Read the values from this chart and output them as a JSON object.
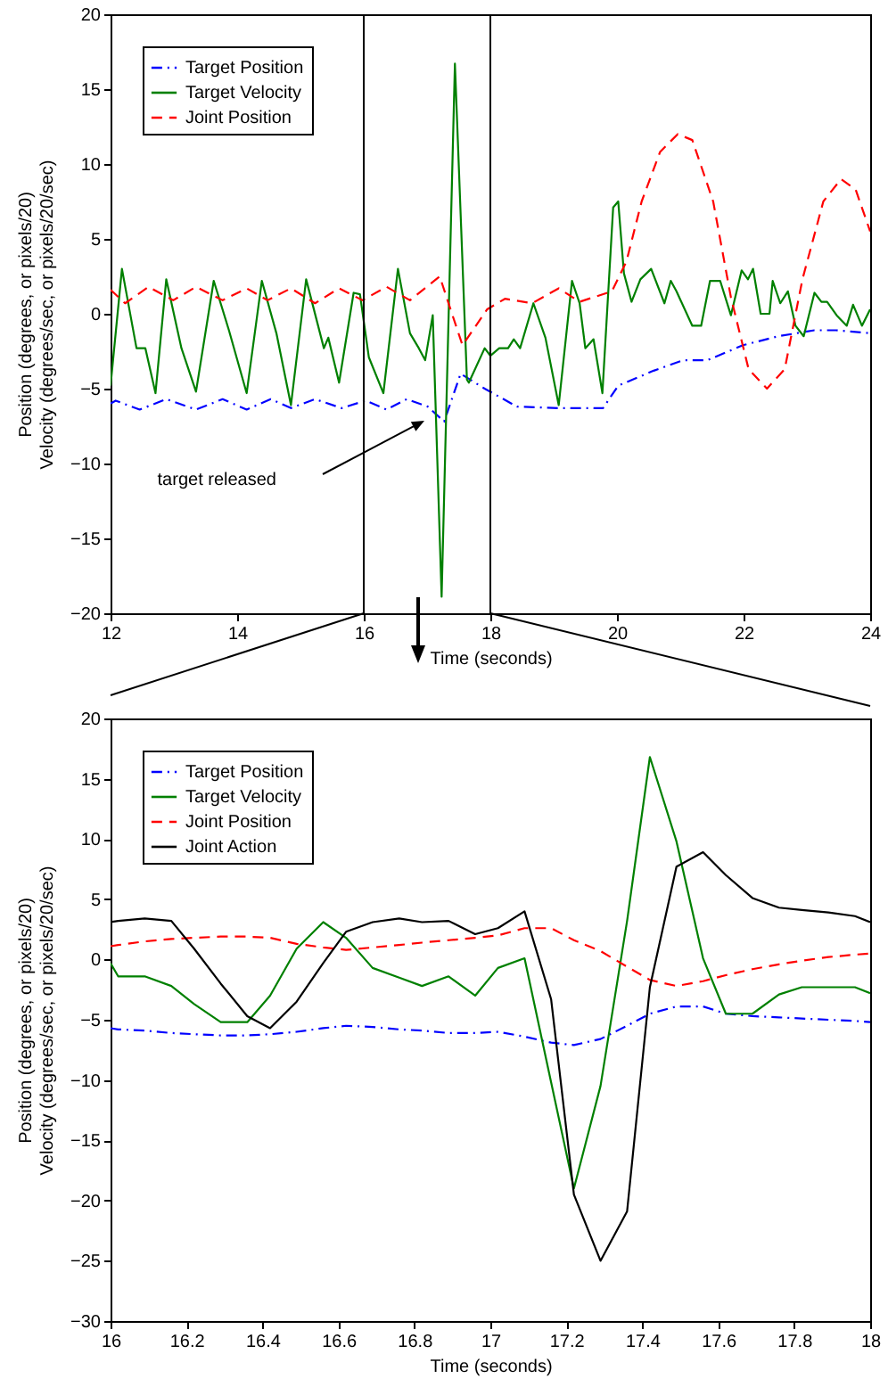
{
  "chart_data": [
    {
      "type": "line",
      "xlabel": "Time (seconds)",
      "ylabel": "Position (degrees, or pixels/20)\nVelocity (degrees/sec, or pixels/20/sec)",
      "xlim": [
        12,
        24
      ],
      "ylim": [
        -20,
        20
      ],
      "xticks": [
        12,
        14,
        16,
        18,
        20,
        22,
        24
      ],
      "yticks": [
        -20,
        -15,
        -10,
        -5,
        0,
        5,
        10,
        15,
        20
      ],
      "grid": false,
      "legend": "top left",
      "marker": "none",
      "ref_lines": [
        {
          "axis": "x",
          "value": 16,
          "color": "#000000"
        },
        {
          "axis": "x",
          "value": 18,
          "color": "#000000"
        }
      ],
      "annotations": [
        "target released"
      ],
      "series": [
        {
          "name": "Target Position",
          "color": "#0000ff",
          "line_style": "dashdot",
          "x": [
            12.0,
            12.08,
            12.46,
            12.88,
            13.35,
            13.77,
            14.15,
            14.53,
            14.85,
            15.23,
            15.65,
            16.03,
            16.36,
            16.68,
            17.01,
            17.27,
            17.53,
            17.91,
            18.42,
            19.08,
            19.78,
            20.02,
            20.58,
            21.05,
            21.43,
            21.99,
            22.55,
            23.12,
            23.46,
            24.0
          ],
          "values": [
            -6.0,
            -5.8,
            -6.4,
            -5.7,
            -6.4,
            -5.7,
            -6.4,
            -5.7,
            -6.3,
            -5.7,
            -6.3,
            -5.8,
            -6.4,
            -5.7,
            -6.2,
            -7.2,
            -4.0,
            -5.0,
            -6.2,
            -6.3,
            -6.3,
            -4.8,
            -3.8,
            -3.1,
            -3.1,
            -2.1,
            -1.5,
            -1.1,
            -1.1,
            -1.3
          ]
        },
        {
          "name": "Target Velocity",
          "color": "#008000",
          "line_style": "solid",
          "x": [
            12.0,
            12.18,
            12.41,
            12.55,
            12.71,
            12.88,
            13.12,
            13.35,
            13.63,
            13.87,
            14.15,
            14.39,
            14.62,
            14.85,
            15.09,
            15.37,
            15.44,
            15.61,
            15.84,
            15.94,
            16.08,
            16.31,
            16.54,
            16.73,
            16.87,
            16.97,
            17.09,
            17.23,
            17.44,
            17.63,
            17.66,
            17.91,
            18.0,
            18.14,
            18.28,
            18.37,
            18.47,
            18.68,
            18.87,
            19.08,
            19.29,
            19.41,
            19.5,
            19.63,
            19.77,
            19.94,
            20.02,
            20.11,
            20.23,
            20.37,
            20.54,
            20.75,
            20.85,
            20.94,
            21.19,
            21.33,
            21.47,
            21.63,
            21.8,
            21.97,
            22.07,
            22.15,
            22.27,
            22.41,
            22.46,
            22.58,
            22.7,
            22.82,
            22.95,
            23.12,
            23.23,
            23.32,
            23.47,
            23.63,
            23.73,
            23.87,
            24.0
          ],
          "values": [
            -4.8,
            3.0,
            -2.3,
            -2.3,
            -5.3,
            2.3,
            -2.3,
            -5.2,
            2.2,
            -1.1,
            -5.3,
            2.2,
            -1.3,
            -6.1,
            2.3,
            -2.3,
            -1.6,
            -4.6,
            1.4,
            1.3,
            -2.9,
            -5.3,
            3.0,
            -1.3,
            -2.3,
            -3.1,
            -0.1,
            -18.9,
            16.7,
            -4.4,
            -4.6,
            -2.3,
            -2.8,
            -2.3,
            -2.3,
            -1.7,
            -2.3,
            0.7,
            -1.6,
            -6.1,
            2.2,
            0.7,
            -2.3,
            -1.7,
            -5.3,
            7.1,
            7.5,
            2.7,
            0.8,
            2.3,
            3.0,
            0.7,
            2.2,
            1.5,
            -0.8,
            -0.8,
            2.2,
            2.2,
            -0.1,
            2.9,
            2.3,
            3.0,
            0.0,
            0.0,
            2.2,
            0.7,
            1.5,
            -0.8,
            -1.5,
            1.4,
            0.8,
            0.8,
            -0.1,
            -0.8,
            0.6,
            -0.8,
            0.3
          ]
        },
        {
          "name": "Joint Position",
          "color": "#ff0000",
          "line_style": "dashed",
          "x": [
            12.0,
            12.23,
            12.6,
            12.99,
            13.35,
            13.77,
            14.15,
            14.48,
            14.85,
            15.23,
            15.61,
            15.98,
            16.36,
            16.73,
            17.2,
            17.37,
            17.56,
            17.95,
            18.23,
            18.66,
            19.08,
            19.41,
            19.92,
            20.15,
            20.39,
            20.68,
            20.96,
            21.19,
            21.52,
            21.8,
            22.08,
            22.37,
            22.65,
            22.93,
            23.26,
            23.54,
            23.77,
            24.0
          ],
          "values": [
            1.6,
            0.7,
            1.8,
            0.9,
            1.8,
            0.9,
            1.7,
            0.9,
            1.7,
            0.7,
            1.7,
            0.9,
            1.8,
            0.9,
            2.5,
            0.3,
            -2.1,
            0.3,
            1.0,
            0.7,
            1.7,
            0.8,
            1.5,
            3.5,
            7.5,
            10.8,
            12.0,
            11.6,
            7.5,
            1.1,
            -3.7,
            -5.0,
            -3.7,
            2.3,
            7.5,
            9.0,
            8.3,
            5.5
          ]
        }
      ]
    },
    {
      "type": "line",
      "xlabel": "Time (seconds)",
      "ylabel": "Position (degrees, or pixels/20)\nVelocity (degrees/sec, or pixels/20/sec)",
      "xlim": [
        16,
        18
      ],
      "ylim": [
        -30,
        20
      ],
      "xticks": [
        16,
        16.2,
        16.4,
        16.6,
        16.8,
        17,
        17.2,
        17.4,
        17.6,
        17.8,
        18
      ],
      "yticks": [
        -30,
        -25,
        -20,
        -15,
        -10,
        -5,
        0,
        5,
        10,
        15,
        20
      ],
      "grid": false,
      "legend": "top left",
      "marker": "none",
      "x": [
        16.0,
        16.02,
        16.09,
        16.16,
        16.22,
        16.29,
        16.36,
        16.42,
        16.49,
        16.56,
        16.62,
        16.69,
        16.76,
        16.82,
        16.89,
        16.96,
        17.02,
        17.09,
        17.16,
        17.22,
        17.29,
        17.36,
        17.42,
        17.49,
        17.56,
        17.62,
        17.69,
        17.76,
        17.82,
        17.89,
        17.96,
        18.0
      ],
      "series": [
        {
          "name": "Target Position",
          "color": "#0000ff",
          "line_style": "dashdot",
          "values": [
            -5.7,
            -5.8,
            -5.9,
            -6.1,
            -6.2,
            -6.3,
            -6.3,
            -6.2,
            -6.0,
            -5.7,
            -5.5,
            -5.6,
            -5.8,
            -5.9,
            -6.1,
            -6.1,
            -6.0,
            -6.4,
            -6.9,
            -7.1,
            -6.6,
            -5.5,
            -4.5,
            -3.9,
            -3.9,
            -4.5,
            -4.7,
            -4.8,
            -4.9,
            -5.0,
            -5.1,
            -5.2
          ]
        },
        {
          "name": "Target Velocity",
          "color": "#008000",
          "line_style": "solid",
          "values": [
            -0.3,
            -1.4,
            -1.4,
            -2.2,
            -3.7,
            -5.2,
            -5.2,
            -3.0,
            0.9,
            3.1,
            1.8,
            -0.7,
            -1.5,
            -2.2,
            -1.4,
            -3.0,
            -0.7,
            0.1,
            -10.2,
            -19.0,
            -10.5,
            3.2,
            16.8,
            9.8,
            0.1,
            -4.5,
            -4.5,
            -2.9,
            -2.3,
            -2.3,
            -2.3,
            -2.8
          ]
        },
        {
          "name": "Joint Position",
          "color": "#ff0000",
          "line_style": "dashed",
          "values": [
            1.1,
            1.2,
            1.5,
            1.7,
            1.8,
            1.9,
            1.9,
            1.8,
            1.3,
            1.0,
            0.8,
            1.0,
            1.2,
            1.4,
            1.6,
            1.8,
            2.0,
            2.6,
            2.6,
            1.6,
            0.7,
            -0.6,
            -1.7,
            -2.2,
            -1.8,
            -1.3,
            -0.8,
            -0.4,
            -0.1,
            0.2,
            0.4,
            0.5
          ]
        },
        {
          "name": "Joint Action",
          "color": "#000000",
          "line_style": "solid",
          "values": [
            3.1,
            3.2,
            3.4,
            3.2,
            0.9,
            -2.0,
            -4.7,
            -5.7,
            -3.5,
            -0.3,
            2.3,
            3.1,
            3.4,
            3.1,
            3.2,
            2.1,
            2.6,
            4.0,
            -3.3,
            -19.5,
            -25.0,
            -20.9,
            -2.3,
            7.7,
            8.9,
            7.0,
            5.1,
            4.3,
            4.1,
            3.9,
            3.6,
            3.1
          ]
        }
      ]
    }
  ]
}
